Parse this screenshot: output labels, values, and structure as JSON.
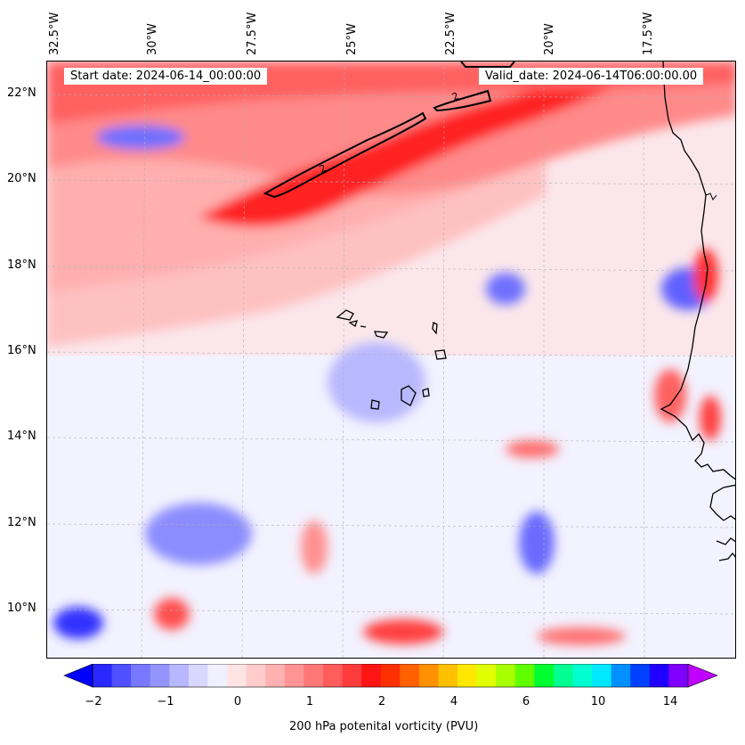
{
  "map": {
    "start_label": "Start date: 2024-06-14_00:00:00",
    "valid_label": "Valid_date: 2024-06-14T06:00:00.00",
    "longitude_labels": [
      "32.5°W",
      "30°W",
      "27.5°W",
      "25°W",
      "22.5°W",
      "20°W",
      "17.5°W"
    ],
    "latitude_labels": [
      "22°N",
      "20°N",
      "18°N",
      "16°N",
      "14°N",
      "12°N",
      "10°N"
    ],
    "contour_label": "2",
    "colors": {
      "strong_red": "#ff1a1a",
      "red": "#ff6666",
      "pink": "#ffb3b3",
      "light_pink": "#ffe0e0",
      "light_blue": "#e6e8ff",
      "blue": "#9999ff",
      "deep_blue": "#2222ff"
    }
  },
  "colorbar": {
    "tick_labels": [
      "−2",
      "−1",
      "0",
      "1",
      "2",
      "4",
      "6",
      "10",
      "14"
    ],
    "title": "200 hPa potenital vorticity (PVU)",
    "colors": [
      "#0000ff",
      "#2828ff",
      "#5050ff",
      "#7878ff",
      "#9494ff",
      "#b8b8ff",
      "#d8d8ff",
      "#f0f0ff",
      "#ffe4e4",
      "#ffcccc",
      "#ffb0b0",
      "#ff9494",
      "#ff7878",
      "#ff5c5c",
      "#ff3c3c",
      "#ff1414",
      "#ff3000",
      "#ff6000",
      "#ff9000",
      "#ffc000",
      "#ffe800",
      "#e0ff00",
      "#a8ff00",
      "#60ff00",
      "#00ff30",
      "#00ff90",
      "#00ffd0",
      "#00e8ff",
      "#0090ff",
      "#0040ff",
      "#2000ff",
      "#8000ff",
      "#c000ff"
    ]
  }
}
